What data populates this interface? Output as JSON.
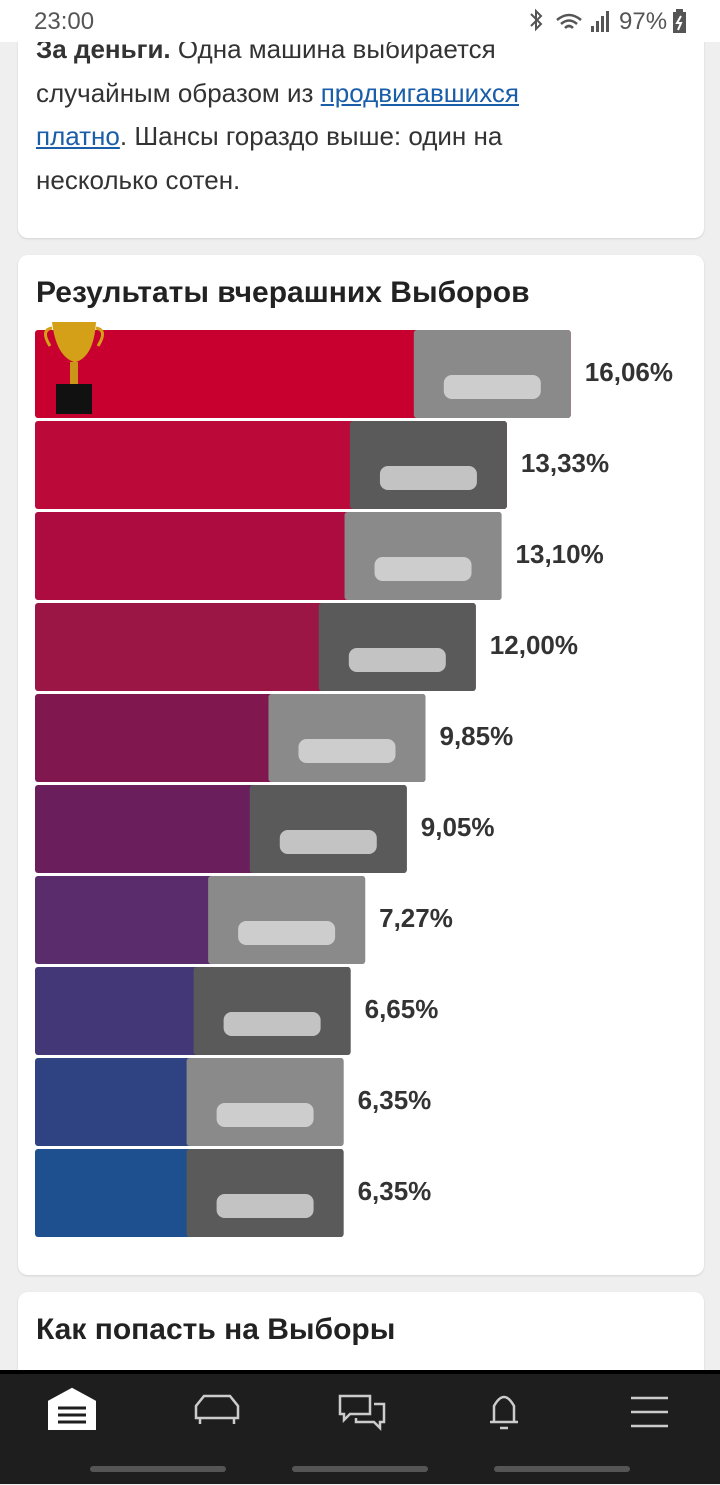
{
  "status_bar": {
    "time": "23:00",
    "battery": "97%"
  },
  "intro": {
    "bold": "За деньги.",
    "text_before": " Одна машина выбирается случайным образом из ",
    "link": "продвигавшихся платно",
    "text_after": ". Шансы гораздо выше: один на несколько сотен."
  },
  "chart_data": {
    "type": "bar",
    "orientation": "horizontal",
    "title": "Результаты вчерашних Выборов",
    "values": [
      16.06,
      13.33,
      13.1,
      12.0,
      9.85,
      9.05,
      7.27,
      6.65,
      6.35,
      6.35
    ],
    "value_labels": [
      "16,06%",
      "13,33%",
      "13,10%",
      "12,00%",
      "9,85%",
      "9,05%",
      "7,27%",
      "6,65%",
      "6,35%",
      "6,35%"
    ],
    "colors": [
      "#c8002f",
      "#bb0a3a",
      "#ad0c40",
      "#9b1645",
      "#80184f",
      "#6a1e5c",
      "#5b2c6c",
      "#433777",
      "#2f4382",
      "#1e4f8f"
    ]
  },
  "how_to": {
    "title": "Как попасть на Выборы"
  }
}
